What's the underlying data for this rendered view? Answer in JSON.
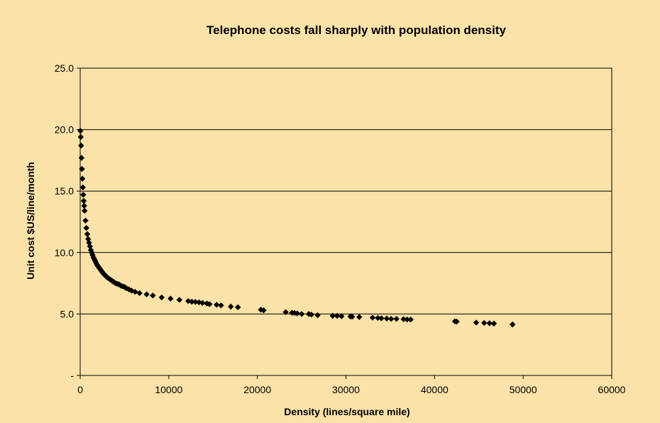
{
  "colors": {
    "background": "#fbe2a8",
    "marker": "#000000",
    "gridline": "#000000"
  },
  "chart_data": {
    "type": "scatter",
    "title": "Telephone costs fall sharply with population density",
    "xlabel": "Density (lines/square mile)",
    "ylabel": "Unit cost $US/line/month",
    "xlim": [
      0,
      60000
    ],
    "ylim": [
      0,
      25
    ],
    "x_ticks": [
      0,
      10000,
      20000,
      30000,
      40000,
      50000,
      60000
    ],
    "x_tick_labels": [
      "0",
      "10000",
      "20000",
      "30000",
      "40000",
      "50000",
      "60000"
    ],
    "y_ticks": [
      0,
      5,
      10,
      15,
      20,
      25
    ],
    "y_tick_labels": [
      "-",
      "5.0",
      "10.0",
      "15.0",
      "20.0",
      "25.0"
    ],
    "grid": "horizontal major gridlines",
    "legend": "none",
    "marker": "diamond",
    "series": [
      {
        "x": [
          30,
          60,
          100,
          150,
          200,
          250,
          300,
          350,
          400,
          450,
          500,
          600,
          700,
          800,
          900,
          1000,
          1100,
          1200,
          1300,
          1400,
          1500,
          1600,
          1700,
          1800,
          1900,
          2000,
          2100,
          2200,
          2300,
          2400,
          2500,
          2600,
          2700,
          2800,
          2900,
          3000,
          3200,
          3400,
          3600,
          3800,
          4000,
          4200,
          4400,
          4600,
          4800,
          5000,
          5200,
          5500,
          5800,
          6200,
          6700,
          7500,
          8200,
          9200,
          10200,
          11200,
          12200,
          12600,
          13000,
          13400,
          13800,
          14300,
          14600,
          15400,
          15900,
          17000,
          17800,
          20400,
          20700,
          23200,
          23900,
          24200,
          24500,
          25000,
          25800,
          26100,
          26800,
          28500,
          29000,
          29500,
          30500,
          30700,
          31500,
          33000,
          33600,
          34000,
          34600,
          35100,
          35700,
          36500,
          36900,
          37300,
          42300,
          42500,
          44700,
          45600,
          46200,
          46700,
          48800
        ],
        "y": [
          19.9,
          19.4,
          18.7,
          17.7,
          16.8,
          16.0,
          15.3,
          14.7,
          14.2,
          13.8,
          13.4,
          12.6,
          12.0,
          11.5,
          11.1,
          10.8,
          10.5,
          10.2,
          10.0,
          9.8,
          9.6,
          9.45,
          9.3,
          9.15,
          9.0,
          8.9,
          8.8,
          8.7,
          8.6,
          8.5,
          8.4,
          8.3,
          8.25,
          8.15,
          8.1,
          8.0,
          7.9,
          7.8,
          7.7,
          7.6,
          7.5,
          7.45,
          7.4,
          7.3,
          7.25,
          7.2,
          7.1,
          7.0,
          6.9,
          6.8,
          6.7,
          6.6,
          6.5,
          6.35,
          6.25,
          6.15,
          6.05,
          6.0,
          5.98,
          5.95,
          5.9,
          5.85,
          5.8,
          5.75,
          5.7,
          5.6,
          5.55,
          5.35,
          5.3,
          5.15,
          5.1,
          5.08,
          5.05,
          5.0,
          5.0,
          4.95,
          4.9,
          4.85,
          4.85,
          4.82,
          4.8,
          4.78,
          4.75,
          4.7,
          4.68,
          4.65,
          4.63,
          4.6,
          4.6,
          4.58,
          4.55,
          4.55,
          4.4,
          4.38,
          4.3,
          4.27,
          4.25,
          4.22,
          4.15
        ]
      }
    ]
  }
}
